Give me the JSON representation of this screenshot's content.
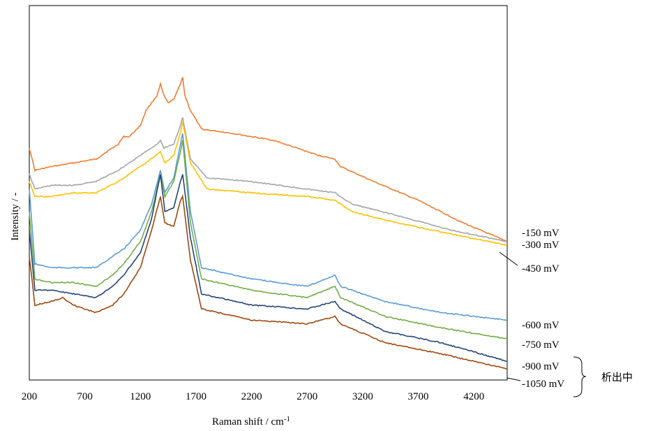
{
  "chart_data": {
    "type": "line",
    "xlabel": "Raman shift / cm",
    "xlabel_sup": "-1",
    "ylabel": "Intensity / -",
    "xlim": [
      200,
      4500
    ],
    "x_ticks": [
      "200",
      "700",
      "1200",
      "1700",
      "2200",
      "2700",
      "3200",
      "3700",
      "4200"
    ],
    "y_ticks": [],
    "grid": false,
    "bracket_label": "析出中",
    "series": [
      {
        "name": "-150 mV",
        "color": "#ED7D31",
        "points": [
          [
            200,
            0.62
          ],
          [
            250,
            0.56
          ],
          [
            400,
            0.57
          ],
          [
            600,
            0.58
          ],
          [
            800,
            0.59
          ],
          [
            1000,
            0.63
          ],
          [
            1050,
            0.65
          ],
          [
            1100,
            0.65
          ],
          [
            1200,
            0.68
          ],
          [
            1250,
            0.72
          ],
          [
            1300,
            0.74
          ],
          [
            1350,
            0.76
          ],
          [
            1380,
            0.79
          ],
          [
            1410,
            0.76
          ],
          [
            1450,
            0.74
          ],
          [
            1500,
            0.75
          ],
          [
            1560,
            0.79
          ],
          [
            1580,
            0.81
          ],
          [
            1600,
            0.76
          ],
          [
            1650,
            0.72
          ],
          [
            1750,
            0.67
          ],
          [
            2000,
            0.66
          ],
          [
            2400,
            0.64
          ],
          [
            2800,
            0.6
          ],
          [
            2950,
            0.59
          ],
          [
            3000,
            0.57
          ],
          [
            3300,
            0.53
          ],
          [
            3700,
            0.48
          ],
          [
            4100,
            0.42
          ],
          [
            4500,
            0.37
          ]
        ]
      },
      {
        "name": "-300 mV",
        "color": "#A5A5A5",
        "points": [
          [
            200,
            0.55
          ],
          [
            250,
            0.51
          ],
          [
            400,
            0.52
          ],
          [
            600,
            0.52
          ],
          [
            800,
            0.53
          ],
          [
            1000,
            0.56
          ],
          [
            1100,
            0.58
          ],
          [
            1250,
            0.61
          ],
          [
            1350,
            0.63
          ],
          [
            1380,
            0.64
          ],
          [
            1410,
            0.62
          ],
          [
            1500,
            0.63
          ],
          [
            1560,
            0.68
          ],
          [
            1580,
            0.7
          ],
          [
            1650,
            0.59
          ],
          [
            1800,
            0.54
          ],
          [
            2200,
            0.53
          ],
          [
            2700,
            0.51
          ],
          [
            2950,
            0.5
          ],
          [
            3100,
            0.47
          ],
          [
            3500,
            0.44
          ],
          [
            4000,
            0.4
          ],
          [
            4500,
            0.37
          ]
        ]
      },
      {
        "name": "-450 mV",
        "color": "#FFC000",
        "points": [
          [
            200,
            0.53
          ],
          [
            250,
            0.49
          ],
          [
            400,
            0.49
          ],
          [
            600,
            0.5
          ],
          [
            800,
            0.5
          ],
          [
            1000,
            0.53
          ],
          [
            1100,
            0.55
          ],
          [
            1250,
            0.58
          ],
          [
            1380,
            0.61
          ],
          [
            1420,
            0.58
          ],
          [
            1500,
            0.6
          ],
          [
            1560,
            0.66
          ],
          [
            1580,
            0.69
          ],
          [
            1650,
            0.58
          ],
          [
            1800,
            0.51
          ],
          [
            2200,
            0.5
          ],
          [
            2700,
            0.49
          ],
          [
            2950,
            0.48
          ],
          [
            3100,
            0.45
          ],
          [
            3500,
            0.42
          ],
          [
            4000,
            0.39
          ],
          [
            4500,
            0.36
          ]
        ]
      },
      {
        "name": "-600 mV",
        "color": "#5B9BD5",
        "points": [
          [
            200,
            0.51
          ],
          [
            250,
            0.31
          ],
          [
            400,
            0.3
          ],
          [
            600,
            0.3
          ],
          [
            800,
            0.3
          ],
          [
            950,
            0.33
          ],
          [
            1050,
            0.35
          ],
          [
            1200,
            0.4
          ],
          [
            1300,
            0.47
          ],
          [
            1380,
            0.56
          ],
          [
            1420,
            0.5
          ],
          [
            1500,
            0.54
          ],
          [
            1560,
            0.63
          ],
          [
            1580,
            0.66
          ],
          [
            1650,
            0.45
          ],
          [
            1750,
            0.3
          ],
          [
            2200,
            0.27
          ],
          [
            2700,
            0.25
          ],
          [
            2950,
            0.28
          ],
          [
            3000,
            0.25
          ],
          [
            3400,
            0.21
          ],
          [
            3900,
            0.18
          ],
          [
            4500,
            0.16
          ]
        ]
      },
      {
        "name": "-750 mV",
        "color": "#70AD47",
        "points": [
          [
            200,
            0.45
          ],
          [
            250,
            0.27
          ],
          [
            400,
            0.26
          ],
          [
            600,
            0.26
          ],
          [
            800,
            0.25
          ],
          [
            950,
            0.28
          ],
          [
            1050,
            0.31
          ],
          [
            1200,
            0.37
          ],
          [
            1300,
            0.45
          ],
          [
            1380,
            0.55
          ],
          [
            1420,
            0.49
          ],
          [
            1500,
            0.53
          ],
          [
            1560,
            0.61
          ],
          [
            1580,
            0.64
          ],
          [
            1650,
            0.42
          ],
          [
            1750,
            0.27
          ],
          [
            2200,
            0.24
          ],
          [
            2700,
            0.22
          ],
          [
            2950,
            0.25
          ],
          [
            3000,
            0.22
          ],
          [
            3400,
            0.17
          ],
          [
            3900,
            0.14
          ],
          [
            4500,
            0.11
          ]
        ]
      },
      {
        "name": "-900 mV",
        "color": "#264478",
        "points": [
          [
            200,
            0.4
          ],
          [
            250,
            0.24
          ],
          [
            400,
            0.24
          ],
          [
            600,
            0.23
          ],
          [
            800,
            0.22
          ],
          [
            950,
            0.25
          ],
          [
            1050,
            0.28
          ],
          [
            1200,
            0.34
          ],
          [
            1300,
            0.43
          ],
          [
            1380,
            0.55
          ],
          [
            1420,
            0.45
          ],
          [
            1500,
            0.46
          ],
          [
            1560,
            0.53
          ],
          [
            1580,
            0.55
          ],
          [
            1650,
            0.38
          ],
          [
            1750,
            0.23
          ],
          [
            2200,
            0.2
          ],
          [
            2700,
            0.19
          ],
          [
            2950,
            0.21
          ],
          [
            3000,
            0.19
          ],
          [
            3400,
            0.13
          ],
          [
            3900,
            0.1
          ],
          [
            4500,
            0.05
          ]
        ]
      },
      {
        "name": "-1050 mV",
        "color": "#9E480E",
        "points": [
          [
            200,
            0.33
          ],
          [
            250,
            0.2
          ],
          [
            400,
            0.21
          ],
          [
            500,
            0.22
          ],
          [
            600,
            0.2
          ],
          [
            800,
            0.18
          ],
          [
            950,
            0.2
          ],
          [
            1050,
            0.23
          ],
          [
            1200,
            0.3
          ],
          [
            1300,
            0.4
          ],
          [
            1380,
            0.49
          ],
          [
            1420,
            0.42
          ],
          [
            1500,
            0.41
          ],
          [
            1560,
            0.48
          ],
          [
            1580,
            0.49
          ],
          [
            1650,
            0.32
          ],
          [
            1750,
            0.19
          ],
          [
            2200,
            0.16
          ],
          [
            2700,
            0.15
          ],
          [
            2950,
            0.17
          ],
          [
            3000,
            0.15
          ],
          [
            3400,
            0.1
          ],
          [
            3900,
            0.07
          ],
          [
            4500,
            0.03
          ]
        ]
      }
    ]
  }
}
